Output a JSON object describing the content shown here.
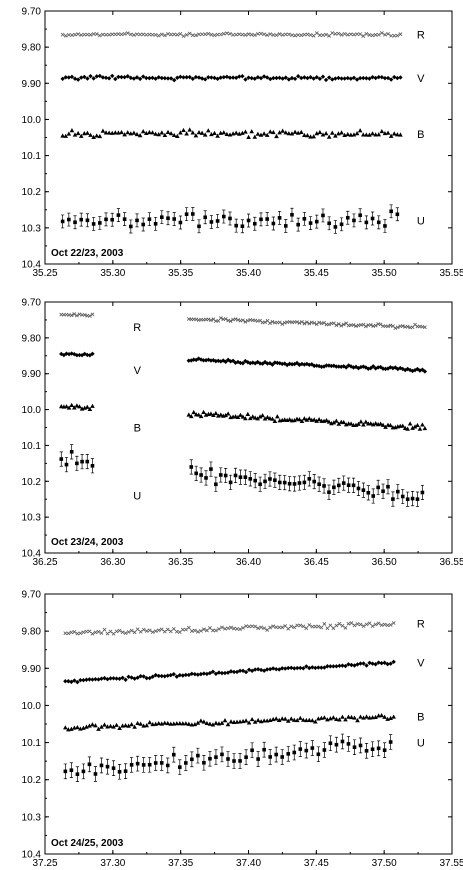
{
  "chart_data": [
    {
      "type": "scatter",
      "title": "",
      "xlabel": "",
      "ylabel": "",
      "annotation": "Oct 22/23, 2003",
      "xlim": [
        35.25,
        35.55
      ],
      "xticks": [
        "35.25",
        "35.30",
        "35.35",
        "35.40",
        "35.45",
        "35.50",
        "35.55"
      ],
      "ylim": [
        9.7,
        10.4
      ],
      "y_inverted": true,
      "yticks": [
        "9.70",
        "9.80",
        "9.90",
        "10.0",
        "10.1",
        "10.2",
        "10.3",
        "10.4"
      ],
      "grid": false,
      "x_start": 35.263,
      "x_end": 35.512,
      "series": [
        {
          "name": "R",
          "marker": "x",
          "base": 9.765,
          "scatter": 0.006,
          "label_x": 35.527
        },
        {
          "name": "V",
          "marker": "diamond",
          "base": 9.885,
          "scatter": 0.007,
          "label_x": 35.527
        },
        {
          "name": "B",
          "marker": "triangle",
          "base": 10.04,
          "scatter": 0.012,
          "label_x": 35.527
        },
        {
          "name": "U",
          "marker": "square-errorbar",
          "base": 10.28,
          "scatter": 0.03,
          "errorbar": 0.018,
          "label_x": 35.527
        }
      ]
    },
    {
      "type": "scatter",
      "title": "",
      "xlabel": "",
      "ylabel": "",
      "annotation": "Oct 23/24, 2003",
      "xlim": [
        36.25,
        36.55
      ],
      "xticks": [
        "36.25",
        "36.30",
        "36.35",
        "36.40",
        "36.45",
        "36.50",
        "36.55"
      ],
      "ylim": [
        9.7,
        10.4
      ],
      "y_inverted": true,
      "yticks": [
        "9.70",
        "9.80",
        "9.90",
        "10.0",
        "10.1",
        "10.2",
        "10.3",
        "10.4"
      ],
      "grid": false,
      "segments": [
        [
          36.262,
          36.285
        ],
        [
          36.356,
          36.53
        ]
      ],
      "series": [
        {
          "name": "R",
          "marker": "x",
          "start": 9.735,
          "end": 9.77,
          "scatter": 0.007,
          "label_x": 36.318
        },
        {
          "name": "V",
          "marker": "diamond",
          "start": 9.845,
          "end": 9.89,
          "scatter": 0.006,
          "label_x": 36.318
        },
        {
          "name": "B",
          "marker": "triangle",
          "start": 9.99,
          "end": 10.05,
          "scatter": 0.01,
          "label_x": 36.318
        },
        {
          "name": "U",
          "marker": "square-errorbar",
          "start": 10.14,
          "end": 10.24,
          "scatter": 0.03,
          "errorbar": 0.02,
          "label_x": 36.318
        }
      ]
    },
    {
      "type": "scatter",
      "title": "",
      "xlabel": "",
      "ylabel": "",
      "annotation": "Oct 24/25, 2003",
      "xlim": [
        37.25,
        37.55
      ],
      "xticks": [
        "37.25",
        "37.30",
        "37.35",
        "37.40",
        "37.45",
        "37.50",
        "37.55"
      ],
      "ylim": [
        9.7,
        10.4
      ],
      "y_inverted": true,
      "yticks": [
        "9.70",
        "9.80",
        "9.90",
        "10.0",
        "10.1",
        "10.2",
        "10.3",
        "10.4"
      ],
      "grid": false,
      "x_start": 37.265,
      "x_end": 37.507,
      "series": [
        {
          "name": "R",
          "marker": "x",
          "start": 9.805,
          "end": 9.78,
          "scatter": 0.01,
          "label_x": 37.527
        },
        {
          "name": "V",
          "marker": "diamond",
          "start": 9.935,
          "end": 9.885,
          "scatter": 0.006,
          "label_x": 37.527
        },
        {
          "name": "B",
          "marker": "triangle",
          "start": 10.06,
          "end": 10.03,
          "scatter": 0.01,
          "label_x": 37.527
        },
        {
          "name": "U",
          "marker": "square-errorbar",
          "start": 10.18,
          "end": 10.1,
          "scatter": 0.025,
          "errorbar": 0.02,
          "label_x": 37.527
        }
      ]
    }
  ]
}
